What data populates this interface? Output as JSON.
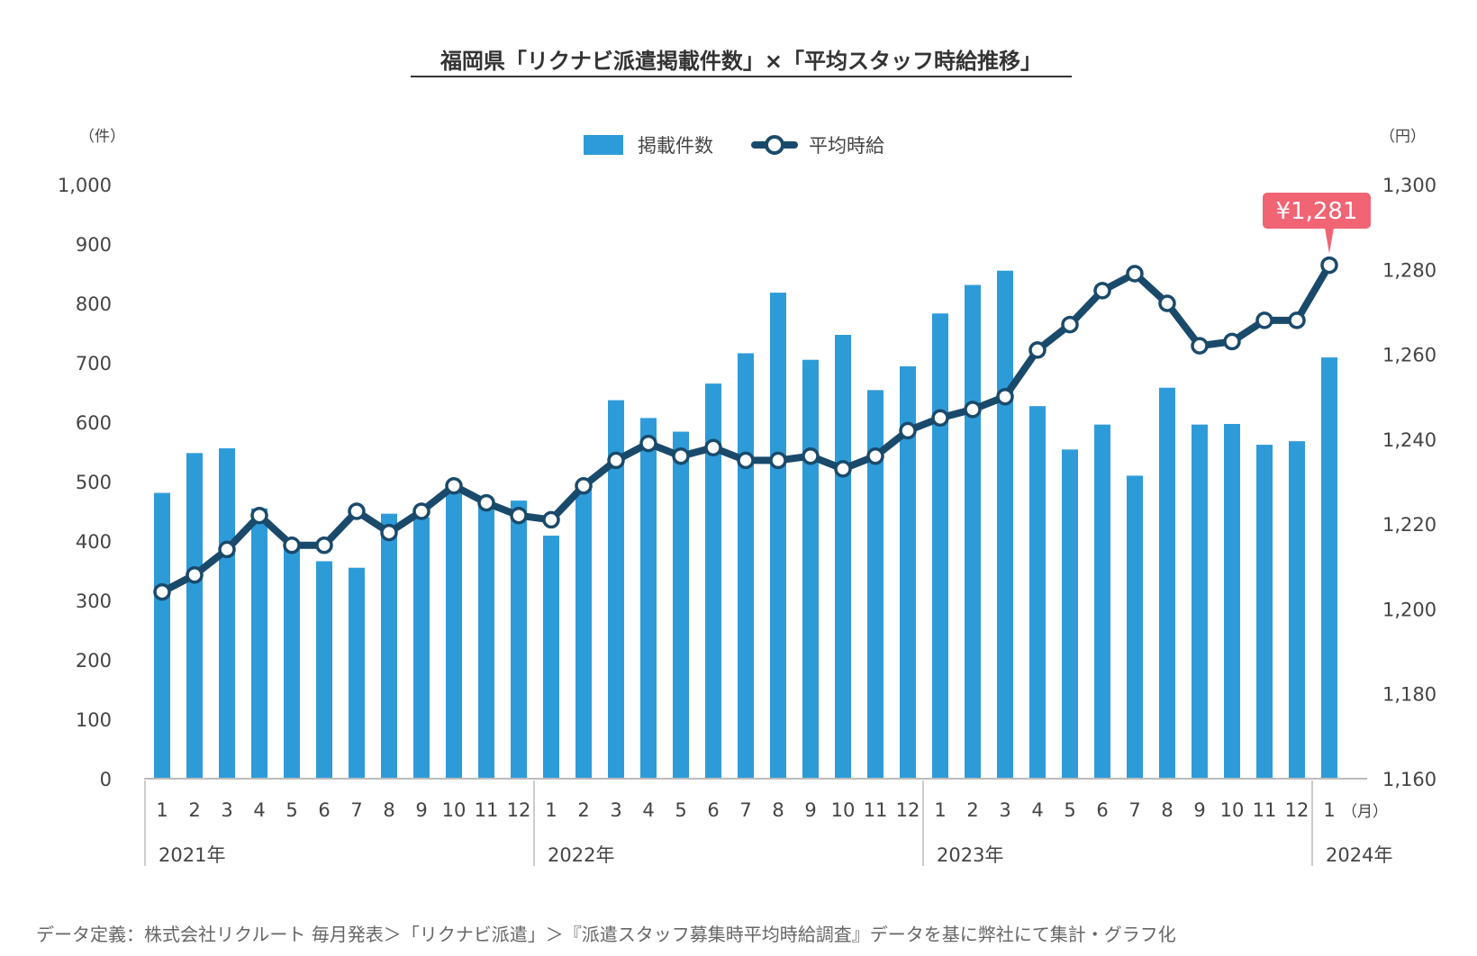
{
  "chart_data": {
    "type": "bar+line",
    "title": "福岡県「リクナビ派遣掲載件数」×「平均スタッフ時給推移」",
    "left_axis": {
      "unit": "（件）",
      "ylim": [
        0,
        1000
      ],
      "ticks": [
        "0",
        "100",
        "200",
        "300",
        "400",
        "500",
        "600",
        "700",
        "800",
        "900",
        "1,000"
      ]
    },
    "right_axis": {
      "unit": "（円）",
      "ylim": [
        1160,
        1300
      ],
      "ticks": [
        "1,160",
        "1,180",
        "1,200",
        "1,220",
        "1,240",
        "1,260",
        "1,280",
        "1,300"
      ]
    },
    "month_labels": [
      "1",
      "2",
      "3",
      "4",
      "5",
      "6",
      "7",
      "8",
      "9",
      "10",
      "11",
      "12",
      "1",
      "2",
      "3",
      "4",
      "5",
      "6",
      "7",
      "8",
      "9",
      "10",
      "11",
      "12",
      "1",
      "2",
      "3",
      "4",
      "5",
      "6",
      "7",
      "8",
      "9",
      "10",
      "11",
      "12",
      "1"
    ],
    "month_unit": "（月）",
    "years": [
      {
        "label": "2021年",
        "start": 0
      },
      {
        "label": "2022年",
        "start": 12
      },
      {
        "label": "2023年",
        "start": 24
      },
      {
        "label": "2024年",
        "start": 36
      }
    ],
    "legend": {
      "bar": "掲載件数",
      "line": "平均時給",
      "placement": "top-center"
    },
    "series": [
      {
        "name": "掲載件数",
        "type": "bar",
        "axis": "left",
        "color": "#2e9bd9",
        "values": [
          481,
          548,
          556,
          455,
          392,
          366,
          355,
          446,
          440,
          490,
          462,
          468,
          409,
          490,
          637,
          607,
          584,
          665,
          716,
          818,
          705,
          747,
          654,
          694,
          783,
          831,
          855,
          627,
          554,
          596,
          510,
          658,
          596,
          597,
          562,
          568,
          709
        ]
      },
      {
        "name": "平均時給",
        "type": "line",
        "axis": "right",
        "color": "#1a4a6b",
        "values": [
          1204,
          1208,
          1214,
          1222,
          1215,
          1215,
          1223,
          1218,
          1223,
          1229,
          1225,
          1222,
          1221,
          1229,
          1235,
          1239,
          1236,
          1238,
          1235,
          1235,
          1236,
          1233,
          1236,
          1242,
          1245,
          1247,
          1250,
          1261,
          1267,
          1275,
          1279,
          1272,
          1262,
          1263,
          1268,
          1268,
          1281
        ]
      }
    ],
    "annotation": {
      "text": "¥1,281",
      "index": 36,
      "color": "#f06474"
    }
  },
  "footer": "データ定義：株式会社リクルート 毎月発表＞「リクナビ派遣」＞『派遣スタッフ募集時平均時給調査』データを基に弊社にて集計・グラフ化"
}
